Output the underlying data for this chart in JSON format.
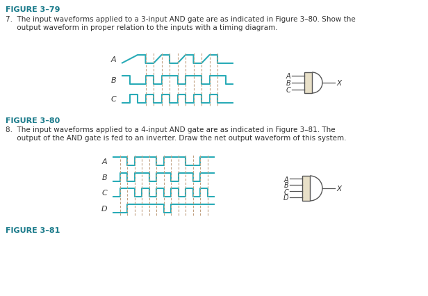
{
  "bg_color": "#ffffff",
  "teal": "#29ABB7",
  "dark_teal": "#008B99",
  "text_color": "#1A7A8A",
  "label_color": "#333333",
  "dashed_color": "#C0A080",
  "title1": "FIGURE 3–79",
  "title2": "FIGURE 3–80",
  "title3": "FIGURE 3–81",
  "q7_text": "7.  The input waveforms applied to a 3-input AND gate are as indicated in Figure 3–80. Show the\n     output waveform in proper relation to the inputs with a timing diagram.",
  "q8_text": "8.  The input waveforms applied to a 4-input AND gate are as indicated in Figure 3–81. The\n     output of the AND gate is fed to an inverter. Draw the net output waveform of this system.",
  "waveA3": [
    0,
    0,
    2,
    1,
    3,
    1,
    3,
    0,
    4,
    0,
    5,
    1,
    6,
    1,
    6,
    0,
    7,
    0,
    8,
    1,
    9,
    1,
    9,
    0,
    10,
    0,
    11,
    1,
    12,
    1,
    12,
    0,
    14,
    0
  ],
  "waveB3": [
    0,
    1,
    1,
    1,
    1,
    0,
    3,
    0,
    3,
    1,
    4,
    1,
    4,
    0,
    5,
    0,
    5,
    1,
    7,
    1,
    7,
    0,
    8,
    0,
    8,
    1,
    10,
    1,
    10,
    0,
    11,
    0,
    11,
    1,
    13,
    1,
    13,
    0,
    14,
    0
  ],
  "waveC3": [
    0,
    0,
    1,
    0,
    1,
    1,
    2,
    1,
    2,
    0,
    3,
    0,
    3,
    1,
    4,
    1,
    4,
    0,
    5,
    0,
    5,
    1,
    6,
    1,
    6,
    0,
    7,
    0,
    7,
    1,
    8,
    1,
    8,
    0,
    9,
    0,
    9,
    1,
    10,
    1,
    10,
    0,
    11,
    0,
    11,
    1,
    12,
    1,
    12,
    0,
    14,
    0
  ],
  "waveA4": [
    0,
    1,
    2,
    1,
    2,
    0,
    3,
    0,
    3,
    1,
    6,
    1,
    6,
    0,
    7,
    0,
    7,
    1,
    10,
    1,
    10,
    0,
    12,
    0,
    12,
    1,
    14,
    1
  ],
  "waveB4": [
    0,
    0,
    1,
    0,
    1,
    1,
    2,
    1,
    2,
    0,
    3,
    0,
    3,
    1,
    5,
    1,
    5,
    0,
    6,
    0,
    6,
    1,
    8,
    1,
    8,
    0,
    9,
    0,
    9,
    1,
    11,
    1,
    11,
    0,
    12,
    0,
    12,
    1,
    14,
    1
  ],
  "waveC4": [
    0,
    0,
    1,
    0,
    1,
    1,
    3,
    1,
    3,
    0,
    4,
    0,
    4,
    1,
    5,
    1,
    5,
    0,
    6,
    0,
    6,
    1,
    7,
    1,
    7,
    0,
    8,
    0,
    8,
    1,
    9,
    1,
    9,
    0,
    10,
    0,
    10,
    1,
    11,
    1,
    11,
    0,
    12,
    0,
    12,
    1,
    13,
    1,
    13,
    0,
    14,
    0
  ],
  "waveD4": [
    0,
    0,
    2,
    0,
    2,
    1,
    7,
    1,
    7,
    0,
    8,
    0,
    8,
    1,
    14,
    1
  ],
  "dashes3_x": [
    3,
    4,
    5,
    6,
    7,
    8,
    9,
    10,
    11,
    12
  ],
  "dashes4_x": [
    1,
    2,
    3,
    4,
    5,
    6,
    7,
    8,
    9,
    10,
    11,
    12,
    13
  ]
}
